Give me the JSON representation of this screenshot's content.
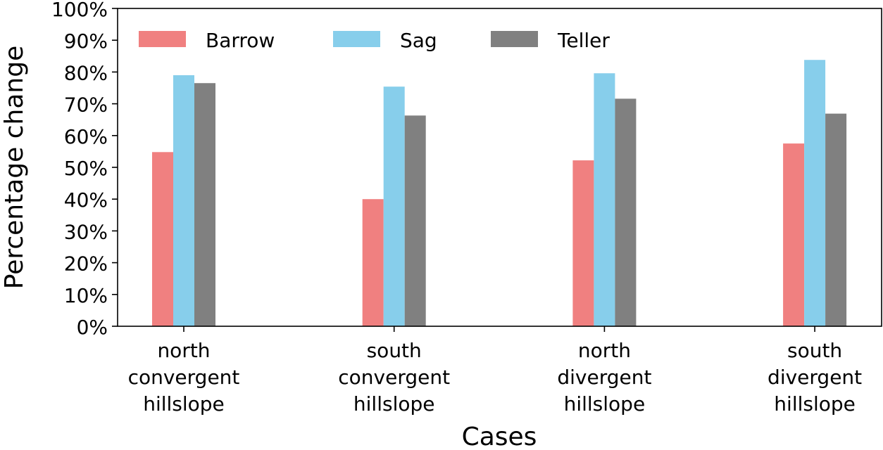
{
  "chart_data": {
    "type": "bar",
    "title": "",
    "xlabel": "Cases",
    "ylabel": "Percentage change",
    "ylim": [
      0,
      100
    ],
    "yticks": [
      "0%",
      "10%",
      "20%",
      "30%",
      "40%",
      "50%",
      "60%",
      "70%",
      "80%",
      "90%",
      "100%"
    ],
    "categories": [
      [
        "north",
        "convergent",
        "hillslope"
      ],
      [
        "south",
        "convergent",
        "hillslope"
      ],
      [
        "north",
        "divergent",
        "hillslope"
      ],
      [
        "south",
        "divergent",
        "hillslope"
      ]
    ],
    "series": [
      {
        "name": "Barrow",
        "color": "#f08080",
        "values": [
          54.8,
          40.0,
          52.2,
          57.5
        ]
      },
      {
        "name": "Sag",
        "color": "#87ceeb",
        "values": [
          79.0,
          75.4,
          79.6,
          83.8
        ]
      },
      {
        "name": "Teller",
        "color": "#808080",
        "values": [
          76.5,
          66.3,
          71.6,
          66.9
        ]
      }
    ],
    "legend": {
      "position": "top-left",
      "orientation": "horizontal"
    },
    "grid": false
  }
}
